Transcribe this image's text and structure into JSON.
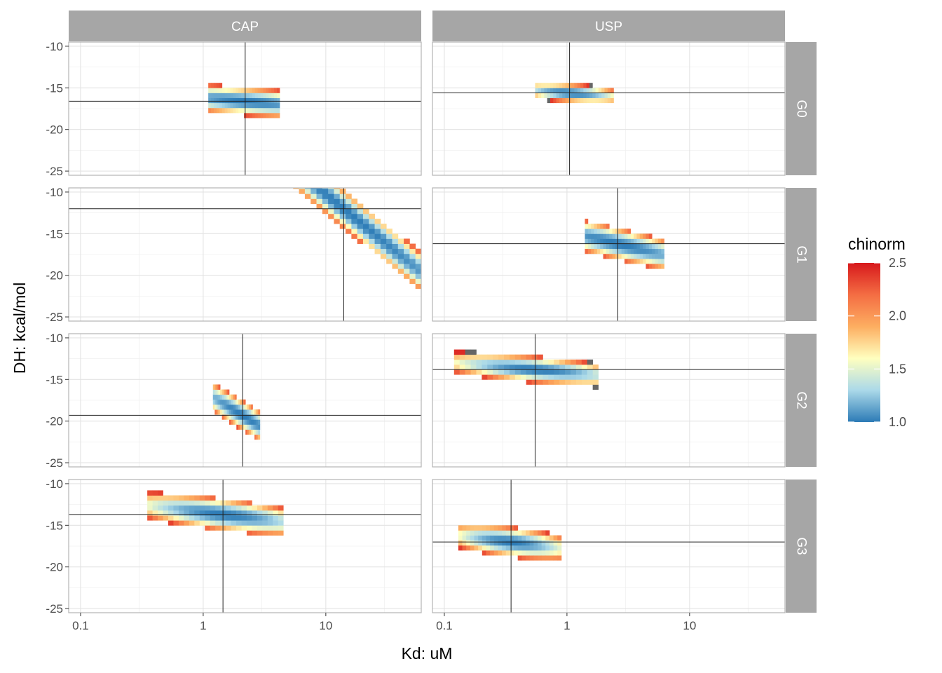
{
  "chart_data": {
    "type": "heatmap",
    "xlabel": "Kd: uM",
    "ylabel": "DH: kcal/mol",
    "x_scale": "log10",
    "xlim": [
      0.08,
      60
    ],
    "ylim": [
      -25.5,
      -9.5
    ],
    "x_ticks": [
      0.1,
      1,
      10
    ],
    "x_tick_labels": [
      "0.1",
      "1",
      "10"
    ],
    "y_ticks": [
      -10,
      -15,
      -20,
      -25
    ],
    "y_tick_labels": [
      "-10",
      "-15",
      "-20",
      "-25"
    ],
    "columns": [
      "CAP",
      "USP"
    ],
    "rows": [
      "G0",
      "G1",
      "G2",
      "G3"
    ],
    "grid": true,
    "legend": {
      "title": "chinorm",
      "position": "right",
      "min": 1.0,
      "max": 2.5,
      "ticks": [
        1.0,
        1.5,
        2.0,
        2.5
      ],
      "tick_labels": [
        "1.0",
        "1.5",
        "2.0",
        "2.5"
      ],
      "colors": [
        "#2c7bb6",
        "#abd9e9",
        "#ffffbf",
        "#fdae61",
        "#f46d43",
        "#d7191c"
      ],
      "na_color": "#666666"
    },
    "panels": [
      {
        "column": "CAP",
        "row": "G0",
        "best_kd": 2.2,
        "best_dh": -16.6,
        "kd_lo": 1.1,
        "kd_hi": 4.2,
        "slope": -1.2,
        "dh_half_width": 1.4,
        "span": 1.0
      },
      {
        "column": "USP",
        "row": "G0",
        "best_kd": 1.05,
        "best_dh": -15.6,
        "kd_lo": 0.55,
        "kd_hi": 2.4,
        "slope": -1.2,
        "dh_half_width": 0.9,
        "span": 0.5
      },
      {
        "column": "CAP",
        "row": "G1",
        "best_kd": 14,
        "best_dh": -12.0,
        "kd_lo": 3.5,
        "kd_hi": 60,
        "slope": -12,
        "dh_half_width": 2.0,
        "span": 2.2
      },
      {
        "column": "USP",
        "row": "G1",
        "best_kd": 2.6,
        "best_dh": -16.2,
        "kd_lo": 1.4,
        "kd_hi": 6.2,
        "slope": -3.5,
        "dh_half_width": 1.6,
        "span": 1.0
      },
      {
        "column": "CAP",
        "row": "G2",
        "best_kd": 2.1,
        "best_dh": -19.3,
        "kd_lo": 1.2,
        "kd_hi": 2.9,
        "slope": -9,
        "dh_half_width": 1.5,
        "span": 0.6
      },
      {
        "column": "USP",
        "row": "G2",
        "best_kd": 0.55,
        "best_dh": -13.8,
        "kd_lo": 0.12,
        "kd_hi": 1.8,
        "slope": -1.3,
        "dh_half_width": 1.3,
        "span": 0.9
      },
      {
        "column": "CAP",
        "row": "G3",
        "best_kd": 1.45,
        "best_dh": -13.7,
        "kd_lo": 0.35,
        "kd_hi": 4.5,
        "slope": -1.8,
        "dh_half_width": 1.6,
        "span": 0.9
      },
      {
        "column": "USP",
        "row": "G3",
        "best_kd": 0.35,
        "best_dh": -17.0,
        "kd_lo": 0.13,
        "kd_hi": 0.9,
        "slope": -1.8,
        "dh_half_width": 1.5,
        "span": 0.6
      }
    ]
  }
}
